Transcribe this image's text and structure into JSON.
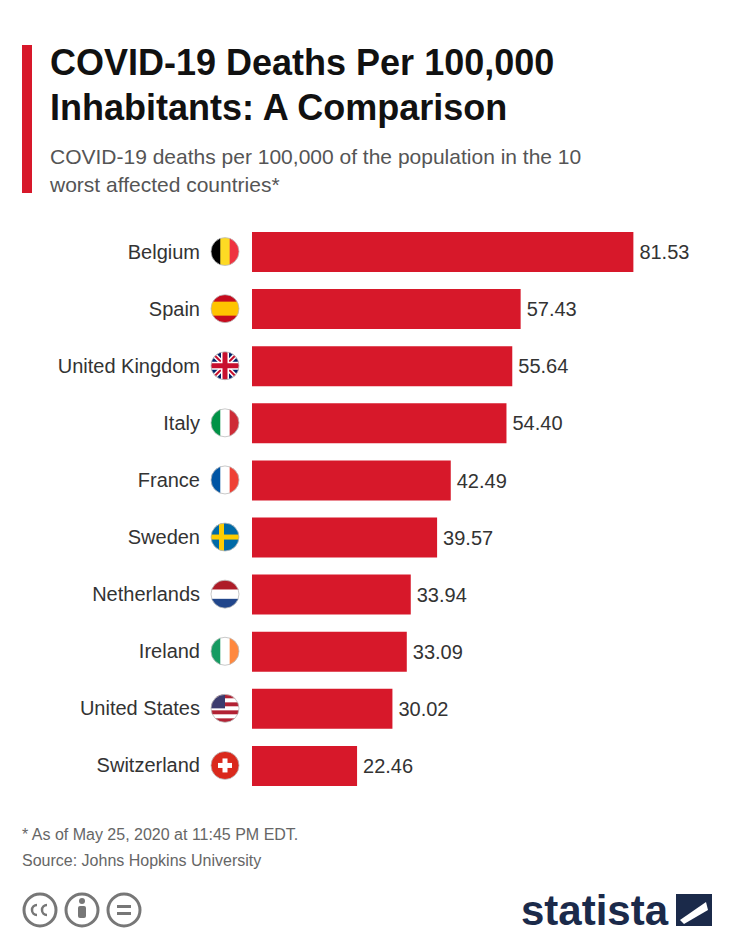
{
  "chart_data": {
    "type": "bar",
    "title": "COVID-19 Deaths Per 100,000 Inhabitants: A Comparison",
    "subtitle": "COVID-19 deaths per 100,000 of the population in the 10 worst affected countries*",
    "categories": [
      "Belgium",
      "Spain",
      "United Kingdom",
      "Italy",
      "France",
      "Sweden",
      "Netherlands",
      "Ireland",
      "United States",
      "Switzerland"
    ],
    "values": [
      81.53,
      57.43,
      55.64,
      54.4,
      42.49,
      39.57,
      33.94,
      33.09,
      30.02,
      22.46
    ],
    "value_labels": [
      "81.53",
      "57.43",
      "55.64",
      "54.40",
      "42.49",
      "39.57",
      "33.94",
      "33.09",
      "30.02",
      "22.46"
    ],
    "color": "#d7182a",
    "orientation": "horizontal",
    "data_labels": true,
    "tick_labels": "y",
    "xlim": [
      0,
      90
    ],
    "grid": false,
    "annotations": [
      "* As of May 25, 2020 at 11:45 PM EDT.",
      "Source: Johns Hopkins University",
      "statista"
    ]
  }
}
